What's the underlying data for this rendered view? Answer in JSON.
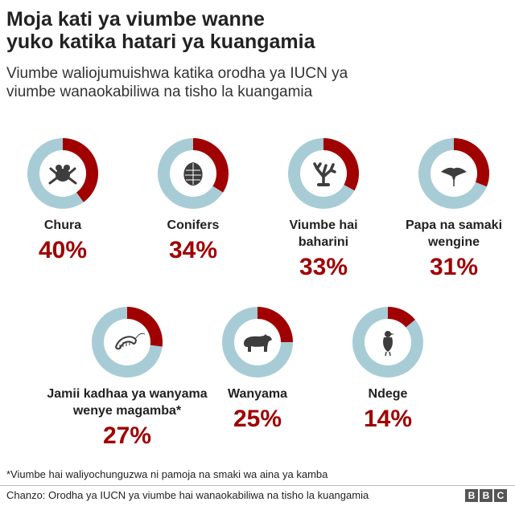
{
  "header": {
    "title_line1": "Moja kati ya viumbe wanne",
    "title_line2": "yuko katika hatari ya kuangamia",
    "subtitle_line1": "Viumbe waliojumuishwa katika orodha ya IUCN ya",
    "subtitle_line2": "viumbe wanaokabiliwa na tisho la kuangamia"
  },
  "colors": {
    "threatened": "#a00000",
    "rest": "#a7ccd6",
    "icon": "#3d3d3d"
  },
  "chart_data": {
    "type": "pie",
    "title": "Moja kati ya viumbe wanne yuko katika hatari ya kuangamia",
    "subtitle": "Viumbe waliojumuishwa katika orodha ya IUCN ya viumbe wanaokabiliwa na tisho la kuangamia",
    "items": [
      {
        "label_line1": "Chura",
        "label_line2": "",
        "value": 40,
        "value_label": "40%",
        "icon": "frog-icon"
      },
      {
        "label_line1": "Conifers",
        "label_line2": "",
        "value": 34,
        "value_label": "34%",
        "icon": "pine-cone-icon"
      },
      {
        "label_line1": "Viumbe hai",
        "label_line2": "baharini",
        "value": 33,
        "value_label": "33%",
        "icon": "coral-icon"
      },
      {
        "label_line1": "Papa na samaki",
        "label_line2": "wengine",
        "value": 31,
        "value_label": "31%",
        "icon": "manta-ray-icon"
      },
      {
        "label_line1": "Jamii kadhaa ya wanyama",
        "label_line2": "wenye magamba*",
        "value": 27,
        "value_label": "27%",
        "icon": "shrimp-icon"
      },
      {
        "label_line1": "Wanyama",
        "label_line2": "",
        "value": 25,
        "value_label": "25%",
        "icon": "bear-icon"
      },
      {
        "label_line1": "Ndege",
        "label_line2": "",
        "value": 14,
        "value_label": "14%",
        "icon": "bird-icon"
      }
    ]
  },
  "footer": {
    "footnote": "*Viumbe hai waliyochunguzwa ni pamoja na smaki wa aina ya kamba",
    "source": "Chanzo: Orodha ya IUCN ya viumbe hai wanaokabiliwa na tisho la kuangamia",
    "logo_letters": [
      "B",
      "B",
      "C"
    ]
  }
}
